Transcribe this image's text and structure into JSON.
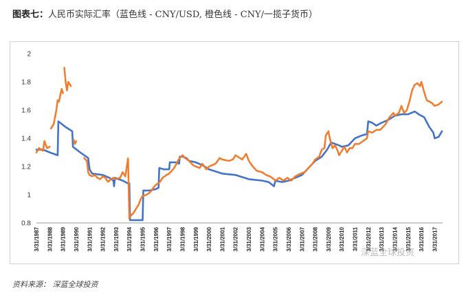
{
  "title_prefix": "图表七：",
  "title_text": "人民币实际汇率（蓝色线 - CNY/USD, 橙色线 - CNY/一揽子货币）",
  "source": "资料来源： 深蓝全球投资",
  "watermark": "深蓝全球投资",
  "colors": {
    "blue": "#4472c4",
    "orange": "#ed7d31",
    "axis": "#999999"
  },
  "chart_data": {
    "type": "line",
    "title": "",
    "xlabel": "",
    "ylabel": "",
    "ylim": [
      0.8,
      2.0
    ],
    "yticks": [
      "0.8",
      "1",
      "1.2",
      "1.4",
      "1.6",
      "1.8",
      "2"
    ],
    "xlim": [
      1987,
      2017.6
    ],
    "xticks": [
      "3/31/1987",
      "3/31/1988",
      "3/31/1989",
      "3/31/1990",
      "3/31/1991",
      "3/31/1992",
      "3/31/1993",
      "3/31/1994",
      "3/31/1995",
      "3/31/1996",
      "3/31/1997",
      "3/31/1998",
      "3/31/1999",
      "3/31/2000",
      "3/31/2001",
      "3/31/2002",
      "3/31/2003",
      "3/31/2004",
      "3/31/2005",
      "3/31/2006",
      "3/31/2007",
      "3/31/2008",
      "3/31/2009",
      "3/31/2010",
      "3/31/2011",
      "3/31/2012",
      "3/31/2013",
      "3/31/2014",
      "3/31/2015",
      "3/31/2016",
      "3/31/2017"
    ],
    "grid": false,
    "legend": "none",
    "series": [
      {
        "style": "solid",
        "color": "#4472c4",
        "segments": [
          [
            [
              1987.0,
              1.32
            ],
            [
              1987.5,
              1.32
            ],
            [
              1988.0,
              1.3
            ],
            [
              1988.6,
              1.28
            ],
            [
              1988.65,
              1.52
            ],
            [
              1989.2,
              1.48
            ],
            [
              1989.7,
              1.45
            ],
            [
              1989.75,
              1.34
            ],
            [
              1990.3,
              1.3
            ],
            [
              1990.9,
              1.26
            ],
            [
              1991.0,
              1.18
            ],
            [
              1991.2,
              1.15
            ],
            [
              1992.0,
              1.14
            ],
            [
              1992.5,
              1.12
            ],
            [
              1992.8,
              1.1
            ],
            [
              1992.85,
              1.06
            ],
            [
              1992.9,
              1.12
            ],
            [
              1993.5,
              1.1
            ],
            [
              1993.9,
              1.08
            ],
            [
              1994.0,
              1.08
            ],
            [
              1994.05,
              0.82
            ],
            [
              1994.9,
              0.82
            ],
            [
              1995.0,
              0.82
            ],
            [
              1995.05,
              1.03
            ],
            [
              1995.5,
              1.03
            ],
            [
              1996.0,
              1.04
            ],
            [
              1996.2,
              1.05
            ],
            [
              1996.25,
              1.19
            ],
            [
              1996.6,
              1.18
            ],
            [
              1996.9,
              1.18
            ],
            [
              1997.0,
              1.18
            ],
            [
              1997.05,
              1.23
            ],
            [
              1997.5,
              1.23
            ],
            [
              1997.75,
              1.22
            ],
            [
              1997.8,
              1.27
            ],
            [
              1998.0,
              1.27
            ],
            [
              1998.3,
              1.26
            ],
            [
              1998.5,
              1.24
            ],
            [
              1999.0,
              1.23
            ],
            [
              1999.5,
              1.21
            ],
            [
              2000.0,
              1.18
            ],
            [
              2001.0,
              1.15
            ],
            [
              2002.0,
              1.14
            ],
            [
              2003.0,
              1.11
            ],
            [
              2004.0,
              1.1
            ],
            [
              2004.5,
              1.09
            ],
            [
              2004.9,
              1.06
            ],
            [
              2005.0,
              1.1
            ],
            [
              2005.5,
              1.09
            ],
            [
              2006.0,
              1.1
            ],
            [
              2006.5,
              1.12
            ],
            [
              2007.0,
              1.14
            ],
            [
              2007.5,
              1.19
            ],
            [
              2008.0,
              1.24
            ],
            [
              2008.5,
              1.27
            ],
            [
              2008.9,
              1.32
            ],
            [
              2009.2,
              1.37
            ],
            [
              2009.8,
              1.35
            ],
            [
              2010.0,
              1.34
            ],
            [
              2010.5,
              1.35
            ],
            [
              2010.7,
              1.37
            ],
            [
              2011.0,
              1.4
            ],
            [
              2011.5,
              1.42
            ],
            [
              2011.9,
              1.43
            ],
            [
              2012.0,
              1.52
            ],
            [
              2012.3,
              1.51
            ],
            [
              2012.6,
              1.49
            ],
            [
              2013.0,
              1.51
            ],
            [
              2013.5,
              1.53
            ],
            [
              2014.0,
              1.56
            ],
            [
              2014.5,
              1.57
            ],
            [
              2015.0,
              1.57
            ],
            [
              2015.5,
              1.59
            ],
            [
              2015.8,
              1.57
            ],
            [
              2016.2,
              1.55
            ],
            [
              2016.6,
              1.48
            ],
            [
              2016.9,
              1.44
            ],
            [
              2017.0,
              1.4
            ],
            [
              2017.3,
              1.41
            ],
            [
              2017.55,
              1.45
            ]
          ]
        ]
      },
      {
        "style": "dashed-orange",
        "color": "#ed7d31",
        "segments": [
          [
            [
              1987.0,
              1.3
            ],
            [
              1987.2,
              1.33
            ],
            [
              1987.5,
              1.31
            ],
            [
              1987.6,
              1.38
            ],
            [
              1987.8,
              1.33
            ],
            [
              1988.0,
              1.34
            ]
          ],
          [
            [
              1988.1,
              1.47
            ],
            [
              1988.3,
              1.5
            ],
            [
              1988.5,
              1.6
            ],
            [
              1988.6,
              1.67
            ],
            [
              1988.7,
              1.66
            ],
            [
              1988.9,
              1.75
            ],
            [
              1989.0,
              1.72
            ]
          ],
          [
            [
              1989.1,
              1.9
            ],
            [
              1989.2,
              1.8
            ],
            [
              1989.3,
              1.74
            ],
            [
              1989.4,
              1.8
            ],
            [
              1989.6,
              1.77
            ]
          ],
          [
            [
              1989.8,
              1.39
            ],
            [
              1989.9,
              1.36
            ],
            [
              1990.0,
              1.38
            ]
          ],
          [
            [
              1990.6,
              1.26
            ],
            [
              1990.8,
              1.24
            ],
            [
              1990.9,
              1.16
            ],
            [
              1991.0,
              1.14
            ],
            [
              1991.2,
              1.13
            ],
            [
              1991.4,
              1.14
            ],
            [
              1991.6,
              1.12
            ],
            [
              1991.8,
              1.11
            ],
            [
              1992.0,
              1.13
            ],
            [
              1992.2,
              1.12
            ],
            [
              1992.4,
              1.09
            ],
            [
              1992.6,
              1.11
            ],
            [
              1992.8,
              1.12
            ],
            [
              1993.0,
              1.11
            ],
            [
              1993.3,
              1.12
            ],
            [
              1993.5,
              1.16
            ],
            [
              1993.7,
              1.13
            ],
            [
              1993.9,
              1.26
            ],
            [
              1994.0,
              0.83
            ]
          ],
          [
            [
              1994.1,
              0.85
            ],
            [
              1994.3,
              0.87
            ],
            [
              1994.5,
              0.9
            ],
            [
              1994.7,
              0.93
            ],
            [
              1994.9,
              0.98
            ],
            [
              1995.0,
              0.99
            ],
            [
              1995.3,
              1.0
            ],
            [
              1995.6,
              1.02
            ],
            [
              1995.8,
              1.05
            ],
            [
              1996.0,
              1.07
            ],
            [
              1996.3,
              1.09
            ],
            [
              1996.5,
              1.12
            ],
            [
              1996.8,
              1.14
            ],
            [
              1997.0,
              1.15
            ],
            [
              1997.3,
              1.18
            ],
            [
              1997.5,
              1.21
            ],
            [
              1997.7,
              1.25
            ],
            [
              1998.0,
              1.28
            ],
            [
              1998.2,
              1.26
            ],
            [
              1998.5,
              1.24
            ],
            [
              1998.8,
              1.21
            ],
            [
              1999.0,
              1.2
            ],
            [
              1999.3,
              1.19
            ],
            [
              1999.5,
              1.22
            ],
            [
              1999.8,
              1.18
            ],
            [
              2000.0,
              1.2
            ],
            [
              2000.5,
              1.22
            ],
            [
              2000.8,
              1.26
            ],
            [
              2001.0,
              1.25
            ],
            [
              2001.5,
              1.24
            ],
            [
              2001.8,
              1.25
            ],
            [
              2002.0,
              1.28
            ],
            [
              2002.5,
              1.25
            ],
            [
              2002.8,
              1.29
            ],
            [
              2003.0,
              1.24
            ],
            [
              2003.3,
              1.2
            ],
            [
              2003.6,
              1.17
            ],
            [
              2004.0,
              1.16
            ],
            [
              2004.3,
              1.14
            ],
            [
              2004.6,
              1.13
            ],
            [
              2004.9,
              1.11
            ],
            [
              2005.0,
              1.1
            ],
            [
              2005.3,
              1.12
            ],
            [
              2005.6,
              1.1
            ],
            [
              2005.9,
              1.12
            ],
            [
              2006.2,
              1.1
            ],
            [
              2006.5,
              1.13
            ],
            [
              2006.9,
              1.15
            ],
            [
              2007.2,
              1.16
            ],
            [
              2007.5,
              1.19
            ],
            [
              2007.8,
              1.22
            ],
            [
              2008.0,
              1.25
            ],
            [
              2008.3,
              1.27
            ],
            [
              2008.5,
              1.32
            ],
            [
              2008.7,
              1.33
            ],
            [
              2008.8,
              1.42
            ],
            [
              2009.0,
              1.45
            ],
            [
              2009.1,
              1.4
            ],
            [
              2009.3,
              1.33
            ],
            [
              2009.5,
              1.35
            ],
            [
              2009.7,
              1.31
            ],
            [
              2009.8,
              1.28
            ],
            [
              2010.0,
              1.31
            ],
            [
              2010.2,
              1.34
            ],
            [
              2010.4,
              1.3
            ],
            [
              2010.6,
              1.33
            ],
            [
              2010.8,
              1.33
            ],
            [
              2011.0,
              1.36
            ],
            [
              2011.3,
              1.36
            ],
            [
              2011.6,
              1.38
            ],
            [
              2011.9,
              1.4
            ],
            [
              2012.0,
              1.45
            ],
            [
              2012.3,
              1.44
            ],
            [
              2012.6,
              1.46
            ],
            [
              2012.9,
              1.46
            ],
            [
              2013.0,
              1.47
            ],
            [
              2013.3,
              1.5
            ],
            [
              2013.6,
              1.55
            ],
            [
              2013.9,
              1.58
            ],
            [
              2014.0,
              1.56
            ],
            [
              2014.3,
              1.58
            ],
            [
              2014.5,
              1.63
            ],
            [
              2014.7,
              1.58
            ],
            [
              2014.9,
              1.6
            ],
            [
              2015.1,
              1.66
            ],
            [
              2015.3,
              1.74
            ],
            [
              2015.5,
              1.78
            ],
            [
              2015.7,
              1.79
            ],
            [
              2015.9,
              1.77
            ],
            [
              2016.0,
              1.8
            ],
            [
              2016.2,
              1.73
            ],
            [
              2016.4,
              1.67
            ],
            [
              2016.6,
              1.66
            ],
            [
              2016.8,
              1.65
            ],
            [
              2017.0,
              1.63
            ],
            [
              2017.3,
              1.64
            ],
            [
              2017.55,
              1.66
            ]
          ]
        ]
      }
    ]
  }
}
